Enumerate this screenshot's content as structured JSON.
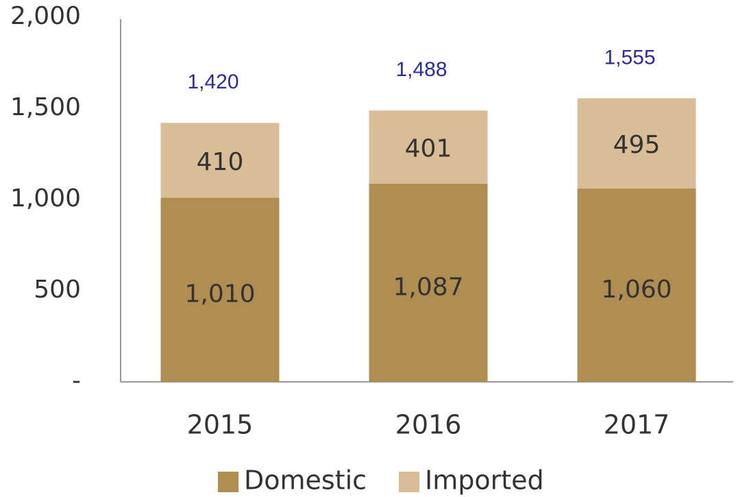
{
  "chart_data": {
    "type": "stacked-bar",
    "categories": [
      "2015",
      "2016",
      "2017"
    ],
    "series": [
      {
        "name": "Domestic",
        "color": "#b08d50",
        "values": [
          1010,
          1087,
          1060
        ],
        "value_labels": [
          "1,010",
          "1,087",
          "1,060"
        ]
      },
      {
        "name": "Imported",
        "color": "#d8bd96",
        "values": [
          410,
          401,
          495
        ]
      }
    ],
    "totals": {
      "values": [
        1420,
        1488,
        1555
      ],
      "value_labels": [
        "1,420",
        "1,488",
        "1,555"
      ]
    },
    "ylim": [
      0,
      2000
    ],
    "yticks": [
      {
        "value": 0,
        "label": "-"
      },
      500,
      {
        "value": 1000,
        "label": "1,000"
      },
      {
        "value": 1500,
        "label": "1,500"
      },
      {
        "value": 2000,
        "label": "2,000"
      }
    ],
    "legend": "bottom"
  }
}
